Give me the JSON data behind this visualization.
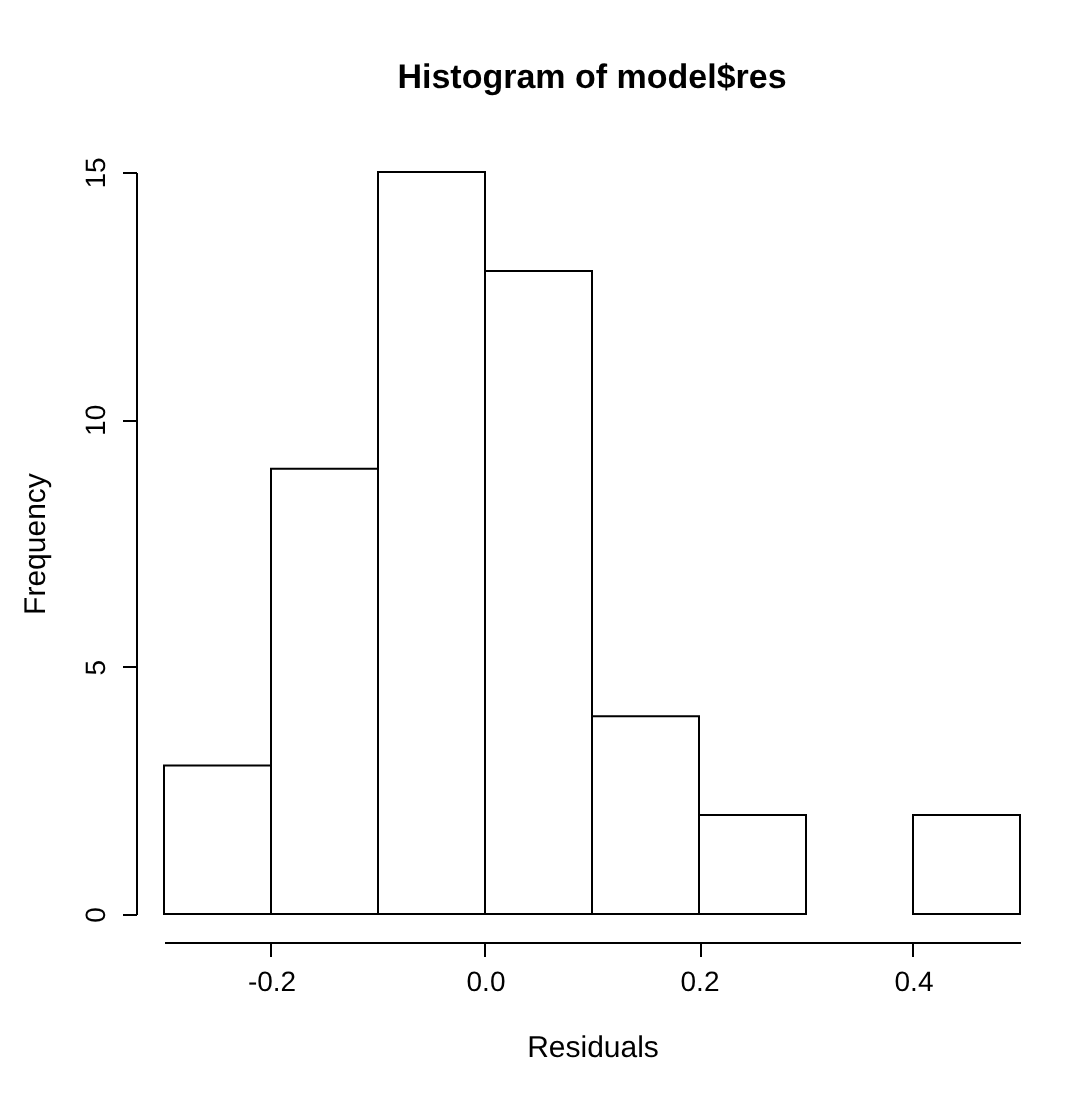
{
  "chart_data": {
    "type": "histogram",
    "title": "Histogram of model$res",
    "xlabel": "Residuals",
    "ylabel": "Frequency",
    "bins": [
      -0.3,
      -0.2,
      -0.1,
      0.0,
      0.1,
      0.2,
      0.3,
      0.4,
      0.5
    ],
    "values": [
      3,
      9,
      15,
      13,
      4,
      2,
      0,
      2
    ],
    "color": "#ffffff",
    "xlim": [
      -0.3,
      0.5
    ],
    "xticks": [
      -0.2,
      {
        "value": 0,
        "label": "0.0"
      },
      0.2,
      0.4
    ],
    "ylim": [
      0,
      15
    ],
    "yticks": [
      0,
      5,
      10,
      15
    ],
    "grid": false
  }
}
